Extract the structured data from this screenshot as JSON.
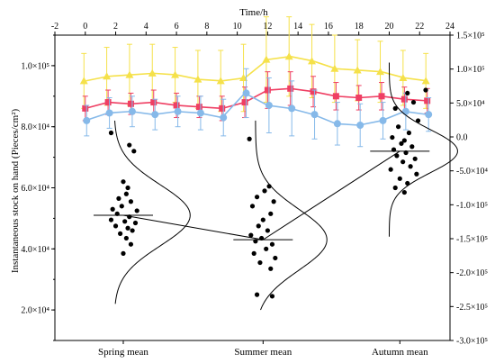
{
  "chart_data": {
    "type": "scatter",
    "top_axis": {
      "label": "Time/h",
      "range": [
        -2,
        24
      ],
      "ticks": [
        -2,
        0,
        2,
        4,
        6,
        8,
        10,
        12,
        14,
        16,
        18,
        20,
        22,
        24
      ]
    },
    "left_axis": {
      "label": "Instantaneous stock on hand (Pieces/cm²)",
      "range": [
        10000,
        110000
      ],
      "ticks": [
        {
          "v": 20000,
          "label": "2.0×10⁴"
        },
        {
          "v": 40000,
          "label": "4.0×10⁴"
        },
        {
          "v": 60000,
          "label": "6.0×10⁴"
        },
        {
          "v": 80000,
          "label": "8.0×10⁴"
        },
        {
          "v": 100000,
          "label": "1.0×10⁵"
        }
      ]
    },
    "right_axis": {
      "range": [
        -300000,
        150000
      ],
      "ticks": [
        {
          "v": 150000,
          "label": "1.5×10⁵"
        },
        {
          "v": 100000,
          "label": "1.0×10⁵"
        },
        {
          "v": 50000,
          "label": "5.0×10⁴"
        },
        {
          "v": 0,
          "label": "0.0"
        },
        {
          "v": -50000,
          "label": "-5.0×10⁴"
        },
        {
          "v": -100000,
          "label": "-1.0×10⁵"
        },
        {
          "v": -150000,
          "label": "-1.5×10⁵"
        },
        {
          "v": -200000,
          "label": "-2.0×10⁵"
        },
        {
          "v": -250000,
          "label": "-2.5×10⁵"
        },
        {
          "v": -300000,
          "label": "-3.0×10⁵"
        }
      ]
    },
    "categories": [
      "Spring mean",
      "Summer mean",
      "Autumn mean"
    ],
    "category_x": [
      2.5,
      11.7,
      20.7
    ],
    "category_means": [
      51000,
      43000,
      72000
    ],
    "scatter_points": [
      {
        "x": 1.7,
        "y": 78000
      },
      {
        "x": 2.9,
        "y": 74000
      },
      {
        "x": 3.2,
        "y": 72000
      },
      {
        "x": 2.5,
        "y": 62000
      },
      {
        "x": 2.8,
        "y": 60000
      },
      {
        "x": 2.7,
        "y": 58000
      },
      {
        "x": 2.2,
        "y": 56500
      },
      {
        "x": 3.0,
        "y": 55500
      },
      {
        "x": 2.4,
        "y": 54000
      },
      {
        "x": 1.8,
        "y": 53000
      },
      {
        "x": 3.4,
        "y": 52500
      },
      {
        "x": 2.1,
        "y": 51500
      },
      {
        "x": 2.9,
        "y": 50500
      },
      {
        "x": 1.7,
        "y": 49500
      },
      {
        "x": 2.6,
        "y": 49000
      },
      {
        "x": 3.3,
        "y": 48500
      },
      {
        "x": 2.0,
        "y": 47500
      },
      {
        "x": 2.8,
        "y": 46800
      },
      {
        "x": 3.1,
        "y": 46000
      },
      {
        "x": 2.3,
        "y": 45000
      },
      {
        "x": 2.7,
        "y": 43500
      },
      {
        "x": 3.0,
        "y": 41500
      },
      {
        "x": 2.5,
        "y": 38500
      },
      {
        "x": 10.8,
        "y": 76000
      },
      {
        "x": 12.1,
        "y": 60500
      },
      {
        "x": 11.8,
        "y": 59000
      },
      {
        "x": 11.3,
        "y": 57000
      },
      {
        "x": 12.4,
        "y": 55500
      },
      {
        "x": 11.0,
        "y": 54000
      },
      {
        "x": 12.2,
        "y": 51500
      },
      {
        "x": 11.7,
        "y": 49500
      },
      {
        "x": 11.4,
        "y": 47500
      },
      {
        "x": 12.0,
        "y": 46000
      },
      {
        "x": 10.9,
        "y": 44500
      },
      {
        "x": 11.6,
        "y": 43500
      },
      {
        "x": 11.2,
        "y": 42500
      },
      {
        "x": 12.3,
        "y": 41500
      },
      {
        "x": 11.9,
        "y": 40000
      },
      {
        "x": 11.1,
        "y": 38500
      },
      {
        "x": 12.5,
        "y": 37000
      },
      {
        "x": 11.5,
        "y": 35500
      },
      {
        "x": 12.2,
        "y": 33500
      },
      {
        "x": 11.3,
        "y": 25000
      },
      {
        "x": 12.3,
        "y": 24500
      },
      {
        "x": 21.2,
        "y": 91000
      },
      {
        "x": 21.6,
        "y": 88000
      },
      {
        "x": 20.4,
        "y": 86000
      },
      {
        "x": 21.9,
        "y": 82000
      },
      {
        "x": 20.6,
        "y": 80000
      },
      {
        "x": 21.3,
        "y": 78000
      },
      {
        "x": 20.2,
        "y": 76500
      },
      {
        "x": 21.0,
        "y": 75500
      },
      {
        "x": 20.8,
        "y": 74500
      },
      {
        "x": 21.5,
        "y": 73500
      },
      {
        "x": 20.3,
        "y": 72500
      },
      {
        "x": 21.1,
        "y": 71500
      },
      {
        "x": 20.5,
        "y": 70500
      },
      {
        "x": 21.7,
        "y": 69500
      },
      {
        "x": 20.9,
        "y": 68500
      },
      {
        "x": 21.4,
        "y": 67000
      },
      {
        "x": 20.1,
        "y": 66000
      },
      {
        "x": 21.8,
        "y": 64500
      },
      {
        "x": 20.7,
        "y": 63000
      },
      {
        "x": 21.2,
        "y": 61500
      },
      {
        "x": 20.4,
        "y": 60000
      },
      {
        "x": 21.0,
        "y": 58500
      },
      {
        "x": 22.4,
        "y": 92000
      }
    ],
    "distribution_curves": [
      {
        "base_x": 1.9,
        "mean": 51000,
        "sigma": 10000,
        "amp": 5.0,
        "y_range": [
          22000,
          82000
        ]
      },
      {
        "base_x": 11.2,
        "mean": 43000,
        "sigma": 10000,
        "amp": 4.7,
        "y_range": [
          20000,
          82000
        ]
      },
      {
        "base_x": 20.0,
        "mean": 72000,
        "sigma": 7000,
        "amp": 4.5,
        "y_range": [
          44000,
          101000
        ]
      }
    ],
    "series": [
      {
        "color": "#f5e14a",
        "marker": "triangle",
        "x": [
          0,
          1.5,
          3,
          4.5,
          6,
          7.5,
          9,
          10.5,
          12,
          13.5,
          15,
          16.5,
          18,
          19.5,
          21,
          22.5
        ],
        "y": [
          95000,
          96500,
          97000,
          97500,
          97000,
          95500,
          95000,
          96000,
          102000,
          103000,
          101500,
          99000,
          98500,
          98000,
          96000,
          95000
        ],
        "err": [
          9000,
          9500,
          10000,
          9500,
          9000,
          9500,
          10000,
          11000,
          14000,
          13000,
          12000,
          11000,
          10000,
          10000,
          9000,
          9000
        ]
      },
      {
        "color": "#ef3f63",
        "marker": "square",
        "x": [
          0,
          1.5,
          3,
          4.5,
          6,
          7.5,
          9,
          10.5,
          12,
          13.5,
          15,
          16.5,
          18,
          19.5,
          21,
          22.5
        ],
        "y": [
          86000,
          88000,
          87500,
          88000,
          87000,
          86500,
          86000,
          88000,
          92000,
          92500,
          91500,
          90000,
          89500,
          90000,
          89000,
          88500
        ],
        "err": [
          4000,
          4000,
          3500,
          4000,
          4000,
          3500,
          4000,
          5000,
          6000,
          5500,
          5000,
          4500,
          4000,
          4500,
          4000,
          4000
        ]
      },
      {
        "color": "#86b9e9",
        "marker": "circle",
        "x": [
          0,
          1.5,
          3,
          4.5,
          6,
          7.5,
          9,
          10.5,
          12,
          13.5,
          15,
          16.5,
          18,
          19.5,
          21,
          22.5
        ],
        "y": [
          82000,
          84500,
          85000,
          84000,
          85000,
          84500,
          83000,
          91000,
          87000,
          86000,
          84000,
          81000,
          80500,
          82000,
          85000,
          84000
        ],
        "err": [
          5000,
          5000,
          5000,
          5000,
          5000,
          5500,
          6000,
          8000,
          9000,
          9000,
          8000,
          7000,
          7000,
          6000,
          6000,
          5500
        ]
      }
    ]
  }
}
